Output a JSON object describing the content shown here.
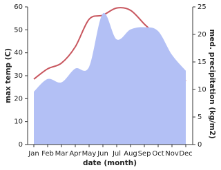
{
  "chart_data": {
    "type": "line+area",
    "x_label": "date (month)",
    "y_label": "max temp (C)",
    "y2_label": "med. precipitation (kg/m2)",
    "categories": [
      "Jan",
      "Feb",
      "Mar",
      "Apr",
      "May",
      "Jun",
      "Jul",
      "Aug",
      "Sep",
      "Oct",
      "Nov",
      "Dec"
    ],
    "series": [
      {
        "name": "max temp",
        "type": "line",
        "color": "#c8565e",
        "values": [
          28.5,
          33,
          35.5,
          42.6,
          54.6,
          56.4,
          59.5,
          58.5,
          52.5,
          46.5,
          36,
          27.6
        ]
      },
      {
        "name": "med. precipitation",
        "type": "area",
        "axis": "y2",
        "color": "#b3c0f5",
        "values": [
          9.6,
          11.9,
          11.3,
          13.8,
          14.1,
          23.8,
          19.1,
          20.9,
          21.3,
          20.6,
          16.3,
          13.4
        ]
      }
    ],
    "ylim": [
      0,
      60
    ],
    "yticks": [
      0,
      10,
      20,
      30,
      40,
      50,
      60
    ],
    "y2lim": [
      0,
      25
    ],
    "y2ticks": [
      0,
      5,
      10,
      15,
      20,
      25
    ]
  }
}
